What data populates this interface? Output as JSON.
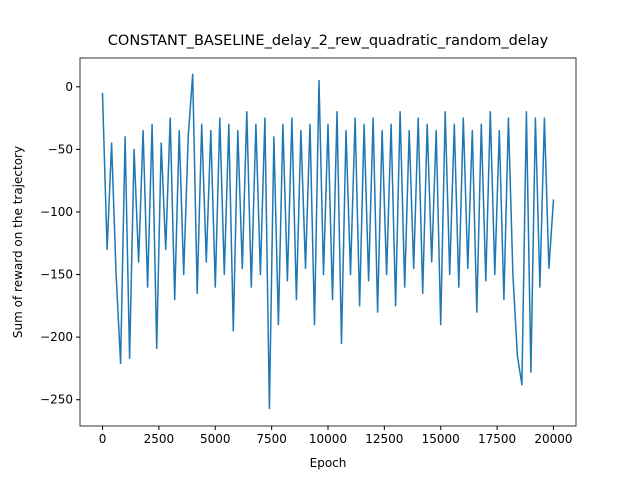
{
  "chart_data": {
    "type": "line",
    "title": "CONSTANT_BASELINE_delay_2_rew_quadratic_random_delay",
    "x_label": "Epoch",
    "y_label": "Sum of reward on the trajectory",
    "xlim": [
      -1000,
      21000
    ],
    "ylim": [
      -271,
      23
    ],
    "xticks": [
      0,
      2500,
      5000,
      7500,
      10000,
      12500,
      15000,
      17500,
      20000
    ],
    "yticks": [
      {
        "value": -250,
        "label": "−250"
      },
      {
        "value": -200,
        "label": "−200"
      },
      {
        "value": -150,
        "label": "−150"
      },
      {
        "value": -100,
        "label": "−100"
      },
      {
        "value": -50,
        "label": "−50"
      },
      0
    ],
    "series": [
      {
        "color": "#1f77b4",
        "x": [
          0,
          200,
          400,
          600,
          800,
          1000,
          1200,
          1400,
          1600,
          1800,
          2000,
          2200,
          2400,
          2600,
          2800,
          3000,
          3200,
          3400,
          3600,
          3800,
          4000,
          4200,
          4400,
          4600,
          4800,
          5000,
          5200,
          5400,
          5600,
          5800,
          6000,
          6200,
          6400,
          6600,
          6800,
          7000,
          7200,
          7400,
          7600,
          7800,
          8000,
          8200,
          8400,
          8600,
          8800,
          9000,
          9200,
          9400,
          9600,
          9800,
          10000,
          10200,
          10400,
          10600,
          10800,
          11000,
          11200,
          11400,
          11600,
          11800,
          12000,
          12200,
          12400,
          12600,
          12800,
          13000,
          13200,
          13400,
          13600,
          13800,
          14000,
          14200,
          14400,
          14600,
          14800,
          15000,
          15200,
          15400,
          15600,
          15800,
          16000,
          16200,
          16400,
          16600,
          16800,
          17000,
          17200,
          17400,
          17600,
          17800,
          18000,
          18200,
          18400,
          18600,
          18800,
          19000,
          19200,
          19400,
          19600,
          19800,
          20000
        ],
        "values": [
          -5,
          -130,
          -45,
          -150,
          -221,
          -40,
          -217,
          -50,
          -140,
          -35,
          -160,
          -30,
          -209,
          -45,
          -130,
          -25,
          -170,
          -35,
          -150,
          -40,
          10,
          -165,
          -30,
          -140,
          -35,
          -160,
          -25,
          -150,
          -30,
          -195,
          -35,
          -145,
          -20,
          -160,
          -30,
          -150,
          -25,
          -257,
          -40,
          -190,
          -30,
          -155,
          -25,
          -170,
          -35,
          -145,
          -30,
          -190,
          5,
          -150,
          -30,
          -170,
          -20,
          -205,
          -35,
          -150,
          -25,
          -175,
          -30,
          -155,
          -25,
          -180,
          -35,
          -150,
          -30,
          -175,
          -20,
          -160,
          -35,
          -145,
          -25,
          -165,
          -30,
          -140,
          -35,
          -190,
          -20,
          -150,
          -30,
          -160,
          -25,
          -145,
          -35,
          -180,
          -30,
          -155,
          -20,
          -150,
          -35,
          -170,
          -25,
          -150,
          -215,
          -238,
          -20,
          -228,
          -25,
          -160,
          -25,
          -145,
          -90
        ]
      }
    ]
  }
}
